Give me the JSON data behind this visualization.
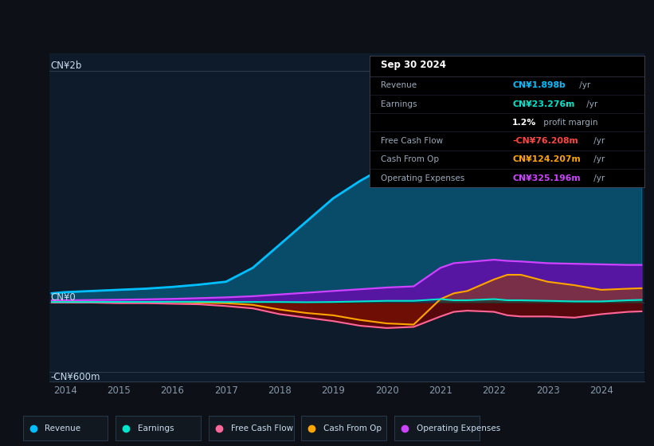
{
  "bg_color": "#0d1117",
  "plot_bg_color": "#0d1b2a",
  "title_box": {
    "date": "Sep 30 2024",
    "rows": [
      {
        "label": "Revenue",
        "value": "CN¥1.898b",
        "suffix": " /yr",
        "value_color": "#00bfff"
      },
      {
        "label": "Earnings",
        "value": "CN¥23.276m",
        "suffix": " /yr",
        "value_color": "#00e5cc"
      },
      {
        "label": "",
        "value": "1.2%",
        "suffix": " profit margin",
        "value_color": "#ffffff"
      },
      {
        "label": "Free Cash Flow",
        "value": "-CN¥76.208m",
        "suffix": " /yr",
        "value_color": "#ff4444"
      },
      {
        "label": "Cash From Op",
        "value": "CN¥124.207m",
        "suffix": " /yr",
        "value_color": "#ffa500"
      },
      {
        "label": "Operating Expenses",
        "value": "CN¥325.196m",
        "suffix": " /yr",
        "value_color": "#cc44ff"
      }
    ]
  },
  "ylabel_top": "CN¥2b",
  "ylabel_zero": "CN¥0",
  "ylabel_bottom": "-CN¥600m",
  "x_ticks": [
    2014,
    2015,
    2016,
    2017,
    2018,
    2019,
    2020,
    2021,
    2022,
    2023,
    2024
  ],
  "legend": [
    {
      "label": "Revenue",
      "color": "#00bfff"
    },
    {
      "label": "Earnings",
      "color": "#00e5cc"
    },
    {
      "label": "Free Cash Flow",
      "color": "#ff6699"
    },
    {
      "label": "Cash From Op",
      "color": "#ffa500"
    },
    {
      "label": "Operating Expenses",
      "color": "#cc44ff"
    }
  ],
  "series": {
    "x": [
      2013.75,
      2014.0,
      2014.5,
      2015.0,
      2015.5,
      2016.0,
      2016.5,
      2017.0,
      2017.5,
      2018.0,
      2018.5,
      2019.0,
      2019.5,
      2020.0,
      2020.5,
      2021.0,
      2021.25,
      2021.5,
      2022.0,
      2022.25,
      2022.5,
      2023.0,
      2023.5,
      2024.0,
      2024.5,
      2024.75
    ],
    "revenue": [
      80,
      90,
      100,
      110,
      120,
      135,
      155,
      180,
      300,
      500,
      700,
      900,
      1050,
      1180,
      1280,
      1400,
      1480,
      1550,
      1700,
      1750,
      1730,
      1600,
      1530,
      1520,
      1780,
      1898
    ],
    "earnings": [
      5,
      5,
      5,
      6,
      6,
      7,
      7,
      5,
      5,
      5,
      3,
      5,
      10,
      15,
      15,
      30,
      20,
      20,
      30,
      20,
      20,
      15,
      10,
      10,
      20,
      23
    ],
    "free_cash_flow": [
      0,
      0,
      0,
      -5,
      -5,
      -10,
      -15,
      -30,
      -50,
      -100,
      -130,
      -160,
      -200,
      -220,
      -210,
      -120,
      -80,
      -70,
      -80,
      -110,
      -120,
      -120,
      -130,
      -100,
      -80,
      -76
    ],
    "cash_from_op": [
      5,
      5,
      5,
      5,
      5,
      5,
      0,
      -5,
      -20,
      -60,
      -90,
      -110,
      -150,
      -180,
      -190,
      30,
      80,
      100,
      200,
      240,
      240,
      180,
      150,
      110,
      120,
      124
    ],
    "operating_expenses": [
      20,
      20,
      22,
      25,
      28,
      32,
      38,
      45,
      55,
      70,
      85,
      100,
      115,
      130,
      140,
      300,
      340,
      350,
      370,
      360,
      355,
      340,
      335,
      330,
      325,
      325
    ]
  }
}
